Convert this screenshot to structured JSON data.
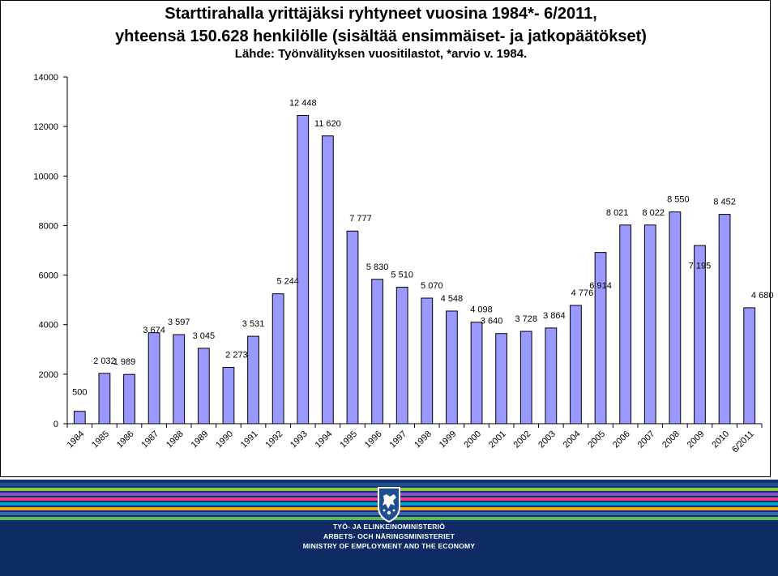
{
  "title": {
    "line1": "Starttirahalla yrittäjäksi ryhtyneet vuosina 1984*- 6/2011,",
    "line2": "yhteensä 150.628 henkilölle (sisältää ensimmäiset- ja jatkopäätökset)",
    "line3": "Lähde: Työnvälityksen vuositilastot, *arvio v. 1984."
  },
  "chart_data": {
    "type": "bar",
    "title": "Starttirahalla yrittäjäksi ryhtyneet vuosina 1984*- 6/2011, yhteensä 150.628 henkilölle (sisältää ensimmäiset- ja jatkopäätökset)",
    "subtitle": "Lähde: Työnvälityksen vuositilastot, *arvio v. 1984.",
    "xlabel": "",
    "ylabel": "",
    "ylim": [
      0,
      14000
    ],
    "yticks": [
      "0",
      "2000",
      "4000",
      "6000",
      "8000",
      "10000",
      "12000",
      "14000"
    ],
    "categories": [
      "1984",
      "1985",
      "1986",
      "1987",
      "1988",
      "1989",
      "1990",
      "1991",
      "1992",
      "1993",
      "1994",
      "1995",
      "1996",
      "1997",
      "1998",
      "1999",
      "2000",
      "2001",
      "2002",
      "2003",
      "2004",
      "2005",
      "2006",
      "2007",
      "2008",
      "2009",
      "2010",
      "6/2011"
    ],
    "values": [
      500,
      2032,
      1989,
      3674,
      3597,
      3045,
      2273,
      3531,
      5244,
      12448,
      11620,
      7777,
      5830,
      5510,
      5070,
      4548,
      4098,
      3640,
      3728,
      3864,
      4776,
      6914,
      8021,
      8022,
      8550,
      7195,
      8452,
      4680
    ],
    "data_labels": [
      "500",
      "2 032",
      "1 989",
      "3 674",
      "3 597",
      "3 045",
      "2 273",
      "3 531",
      "5 244",
      "12 448",
      "11 620",
      "7 777",
      "5 830",
      "5 510",
      "5 070",
      "4 548",
      "4 098",
      "3 640",
      "3 728",
      "3 864",
      "4 776",
      "6 914",
      "8 021",
      "8 022",
      "8 550",
      "7 195",
      "8 452",
      "4 680"
    ],
    "grid": false,
    "legend": "none",
    "bar_color": "#9999ff",
    "bar_edge_color": "#000000"
  },
  "footer": {
    "ministry_fi": "TYÖ- JA ELINKEINOMINISTERIÖ",
    "ministry_sv": "ARBETS- OCH NÄRINGSMINISTERIET",
    "ministry_en": "MINISTRY OF EMPLOYMENT AND THE ECONOMY",
    "logo_icon": "finnish-lion-coat-of-arms-icon",
    "stripe_colors": [
      "#1d4f91",
      "#8dc63f",
      "#7e57c2",
      "#e0408c",
      "#00a3c4",
      "#f4a81d",
      "#3a66b0",
      "#5cb85c"
    ]
  }
}
